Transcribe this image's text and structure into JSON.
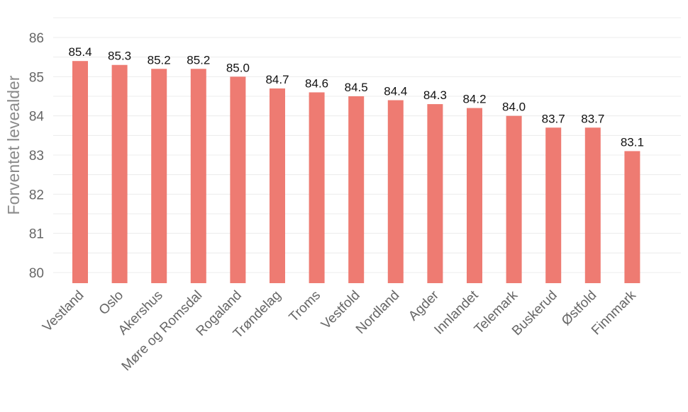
{
  "chart_data": {
    "type": "bar",
    "categories": [
      "Vestland",
      "Oslo",
      "Akershus",
      "Møre og Romsdal",
      "Rogaland",
      "Trøndelag",
      "Troms",
      "Vestfold",
      "Nordland",
      "Agder",
      "Innlandet",
      "Telemark",
      "Buskerud",
      "Østfold",
      "Finnmark"
    ],
    "values": [
      85.4,
      85.3,
      85.2,
      85.2,
      85.0,
      84.7,
      84.6,
      84.5,
      84.4,
      84.3,
      84.2,
      84.0,
      83.7,
      83.7,
      83.1
    ],
    "value_labels": [
      "85.4",
      "85.3",
      "85.2",
      "85.2",
      "85.0",
      "84.7",
      "84.6",
      "84.5",
      "84.4",
      "84.3",
      "84.2",
      "84.0",
      "83.7",
      "83.7",
      "83.1"
    ],
    "yticks": [
      "80",
      "81",
      "82",
      "83",
      "84",
      "85",
      "86"
    ],
    "ylabel": "Forventet levealder",
    "xlabel": "",
    "title": "",
    "ylim": [
      80,
      86
    ],
    "grid": true,
    "legend": "none",
    "bar_color": "#ee7b72"
  }
}
